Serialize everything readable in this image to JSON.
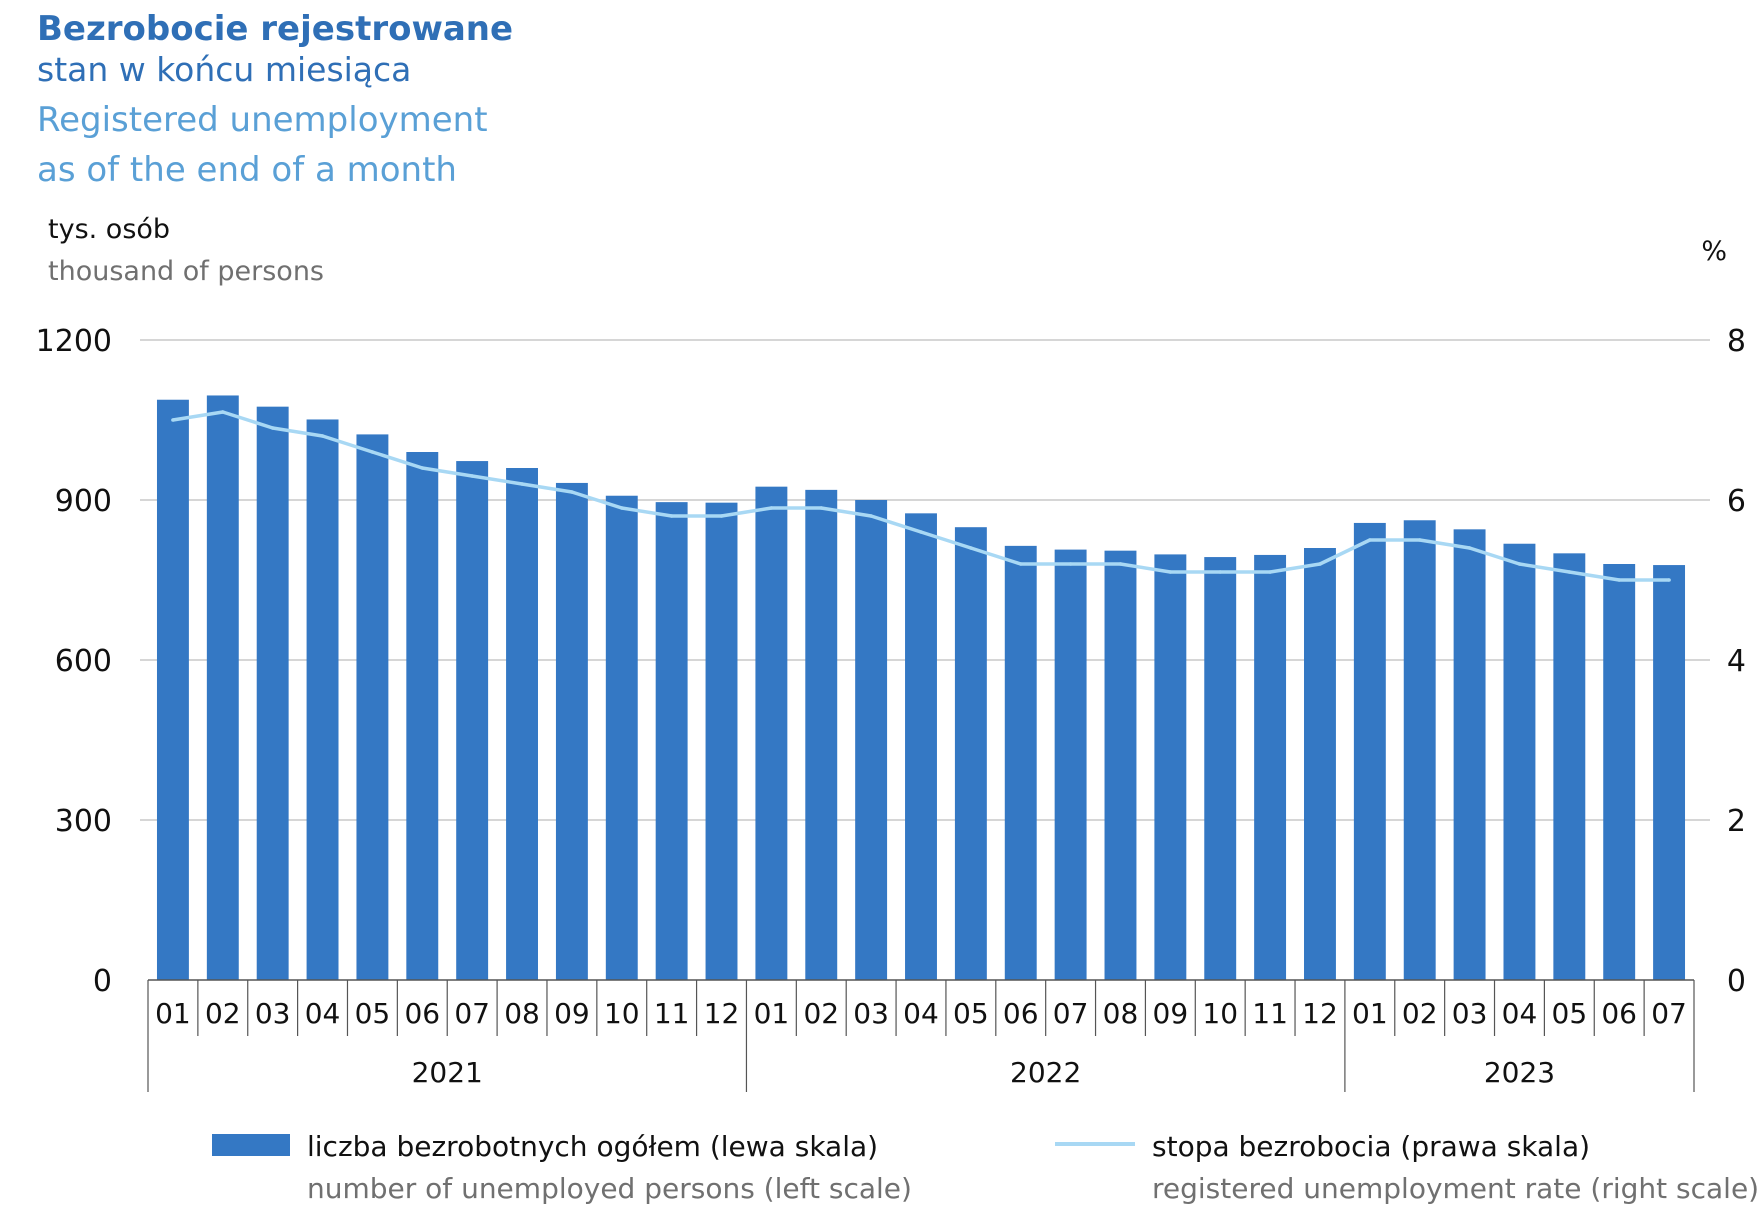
{
  "title": {
    "pl_main": "Bezrobocie rejestrowane",
    "pl_sub": "stan w końcu miesiąca",
    "en_main": "Registered unemployment",
    "en_sub": "as of the end of a month"
  },
  "axes": {
    "left_unit_pl": "tys. osób",
    "left_unit_en": "thousand of persons",
    "right_unit": "%"
  },
  "legend": {
    "bars_pl": "liczba bezrobotnych ogółem (lewa skala)",
    "bars_en": "number of unemployed persons (left scale)",
    "line_pl": "stopa bezrobocia (prawa skala)",
    "line_en": "registered unemployment rate (right scale)"
  },
  "colors": {
    "bars": "#3478c4",
    "line": "#a8d8f4",
    "grid": "#c8c8c8"
  },
  "chart_data": {
    "type": "bar",
    "categories": [
      "01",
      "02",
      "03",
      "04",
      "05",
      "06",
      "07",
      "08",
      "09",
      "10",
      "11",
      "12",
      "01",
      "02",
      "03",
      "04",
      "05",
      "06",
      "07",
      "08",
      "09",
      "10",
      "11",
      "12",
      "01",
      "02",
      "03",
      "04",
      "05",
      "06",
      "07"
    ],
    "years": [
      {
        "label": "2021",
        "count": 12
      },
      {
        "label": "2022",
        "count": 12
      },
      {
        "label": "2023",
        "count": 7
      }
    ],
    "series": [
      {
        "name": "liczba bezrobotnych ogółem (lewa skala)",
        "type": "bar",
        "axis": "left",
        "values": [
          1088,
          1096,
          1075,
          1051,
          1023,
          990,
          973,
          960,
          932,
          908,
          896,
          895,
          925,
          919,
          900,
          875,
          849,
          814,
          807,
          805,
          798,
          793,
          797,
          810,
          857,
          862,
          845,
          818,
          800,
          780,
          778
        ]
      },
      {
        "name": "stopa bezrobocia (prawa skala)",
        "type": "line",
        "axis": "right",
        "values": [
          7.0,
          7.1,
          6.9,
          6.8,
          6.6,
          6.4,
          6.3,
          6.2,
          6.1,
          5.9,
          5.8,
          5.8,
          5.9,
          5.9,
          5.8,
          5.6,
          5.4,
          5.2,
          5.2,
          5.2,
          5.1,
          5.1,
          5.1,
          5.2,
          5.5,
          5.5,
          5.4,
          5.2,
          5.1,
          5.0,
          5.0
        ]
      }
    ],
    "y_left": {
      "min": 0,
      "max": 1200,
      "ticks": [
        0,
        300,
        600,
        900,
        1200
      ]
    },
    "y_right": {
      "min": 0,
      "max": 8,
      "ticks": [
        0,
        2,
        4,
        6,
        8
      ]
    },
    "grid": true,
    "legend_position": "bottom"
  }
}
